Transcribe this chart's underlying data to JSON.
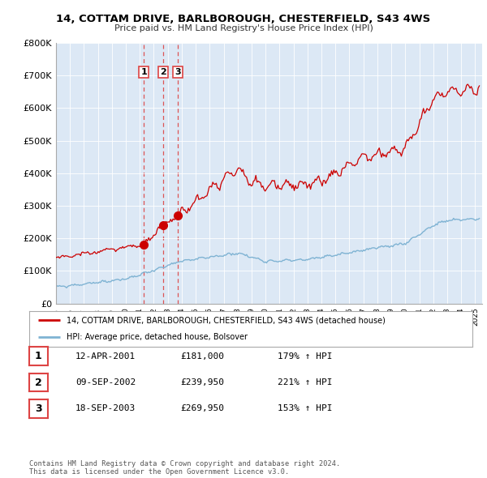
{
  "title": "14, COTTAM DRIVE, BARLBOROUGH, CHESTERFIELD, S43 4WS",
  "subtitle": "Price paid vs. HM Land Registry's House Price Index (HPI)",
  "xlim_start": 1995.0,
  "xlim_end": 2025.5,
  "ylim_bottom": 0,
  "ylim_top": 800000,
  "yticks": [
    0,
    100000,
    200000,
    300000,
    400000,
    500000,
    600000,
    700000,
    800000
  ],
  "ytick_labels": [
    "£0",
    "£100K",
    "£200K",
    "£300K",
    "£400K",
    "£500K",
    "£600K",
    "£700K",
    "£800K"
  ],
  "sale_dates": [
    2001.28,
    2002.69,
    2003.72
  ],
  "sale_prices": [
    181000,
    239950,
    269950
  ],
  "sale_labels": [
    "1",
    "2",
    "3"
  ],
  "legend_red_label": "14, COTTAM DRIVE, BARLBOROUGH, CHESTERFIELD, S43 4WS (detached house)",
  "legend_blue_label": "HPI: Average price, detached house, Bolsover",
  "table_entries": [
    {
      "num": "1",
      "date": "12-APR-2001",
      "price": "£181,000",
      "hpi": "179% ↑ HPI"
    },
    {
      "num": "2",
      "date": "09-SEP-2002",
      "price": "£239,950",
      "hpi": "221% ↑ HPI"
    },
    {
      "num": "3",
      "date": "18-SEP-2003",
      "price": "£269,950",
      "hpi": "153% ↑ HPI"
    }
  ],
  "footer": "Contains HM Land Registry data © Crown copyright and database right 2024.\nThis data is licensed under the Open Government Licence v3.0.",
  "red_color": "#cc0000",
  "blue_color": "#7fb3d3",
  "dashed_red_color": "#dd4444",
  "background_color": "#ffffff",
  "plot_bg_color": "#dce8f5",
  "grid_color": "#ffffff"
}
